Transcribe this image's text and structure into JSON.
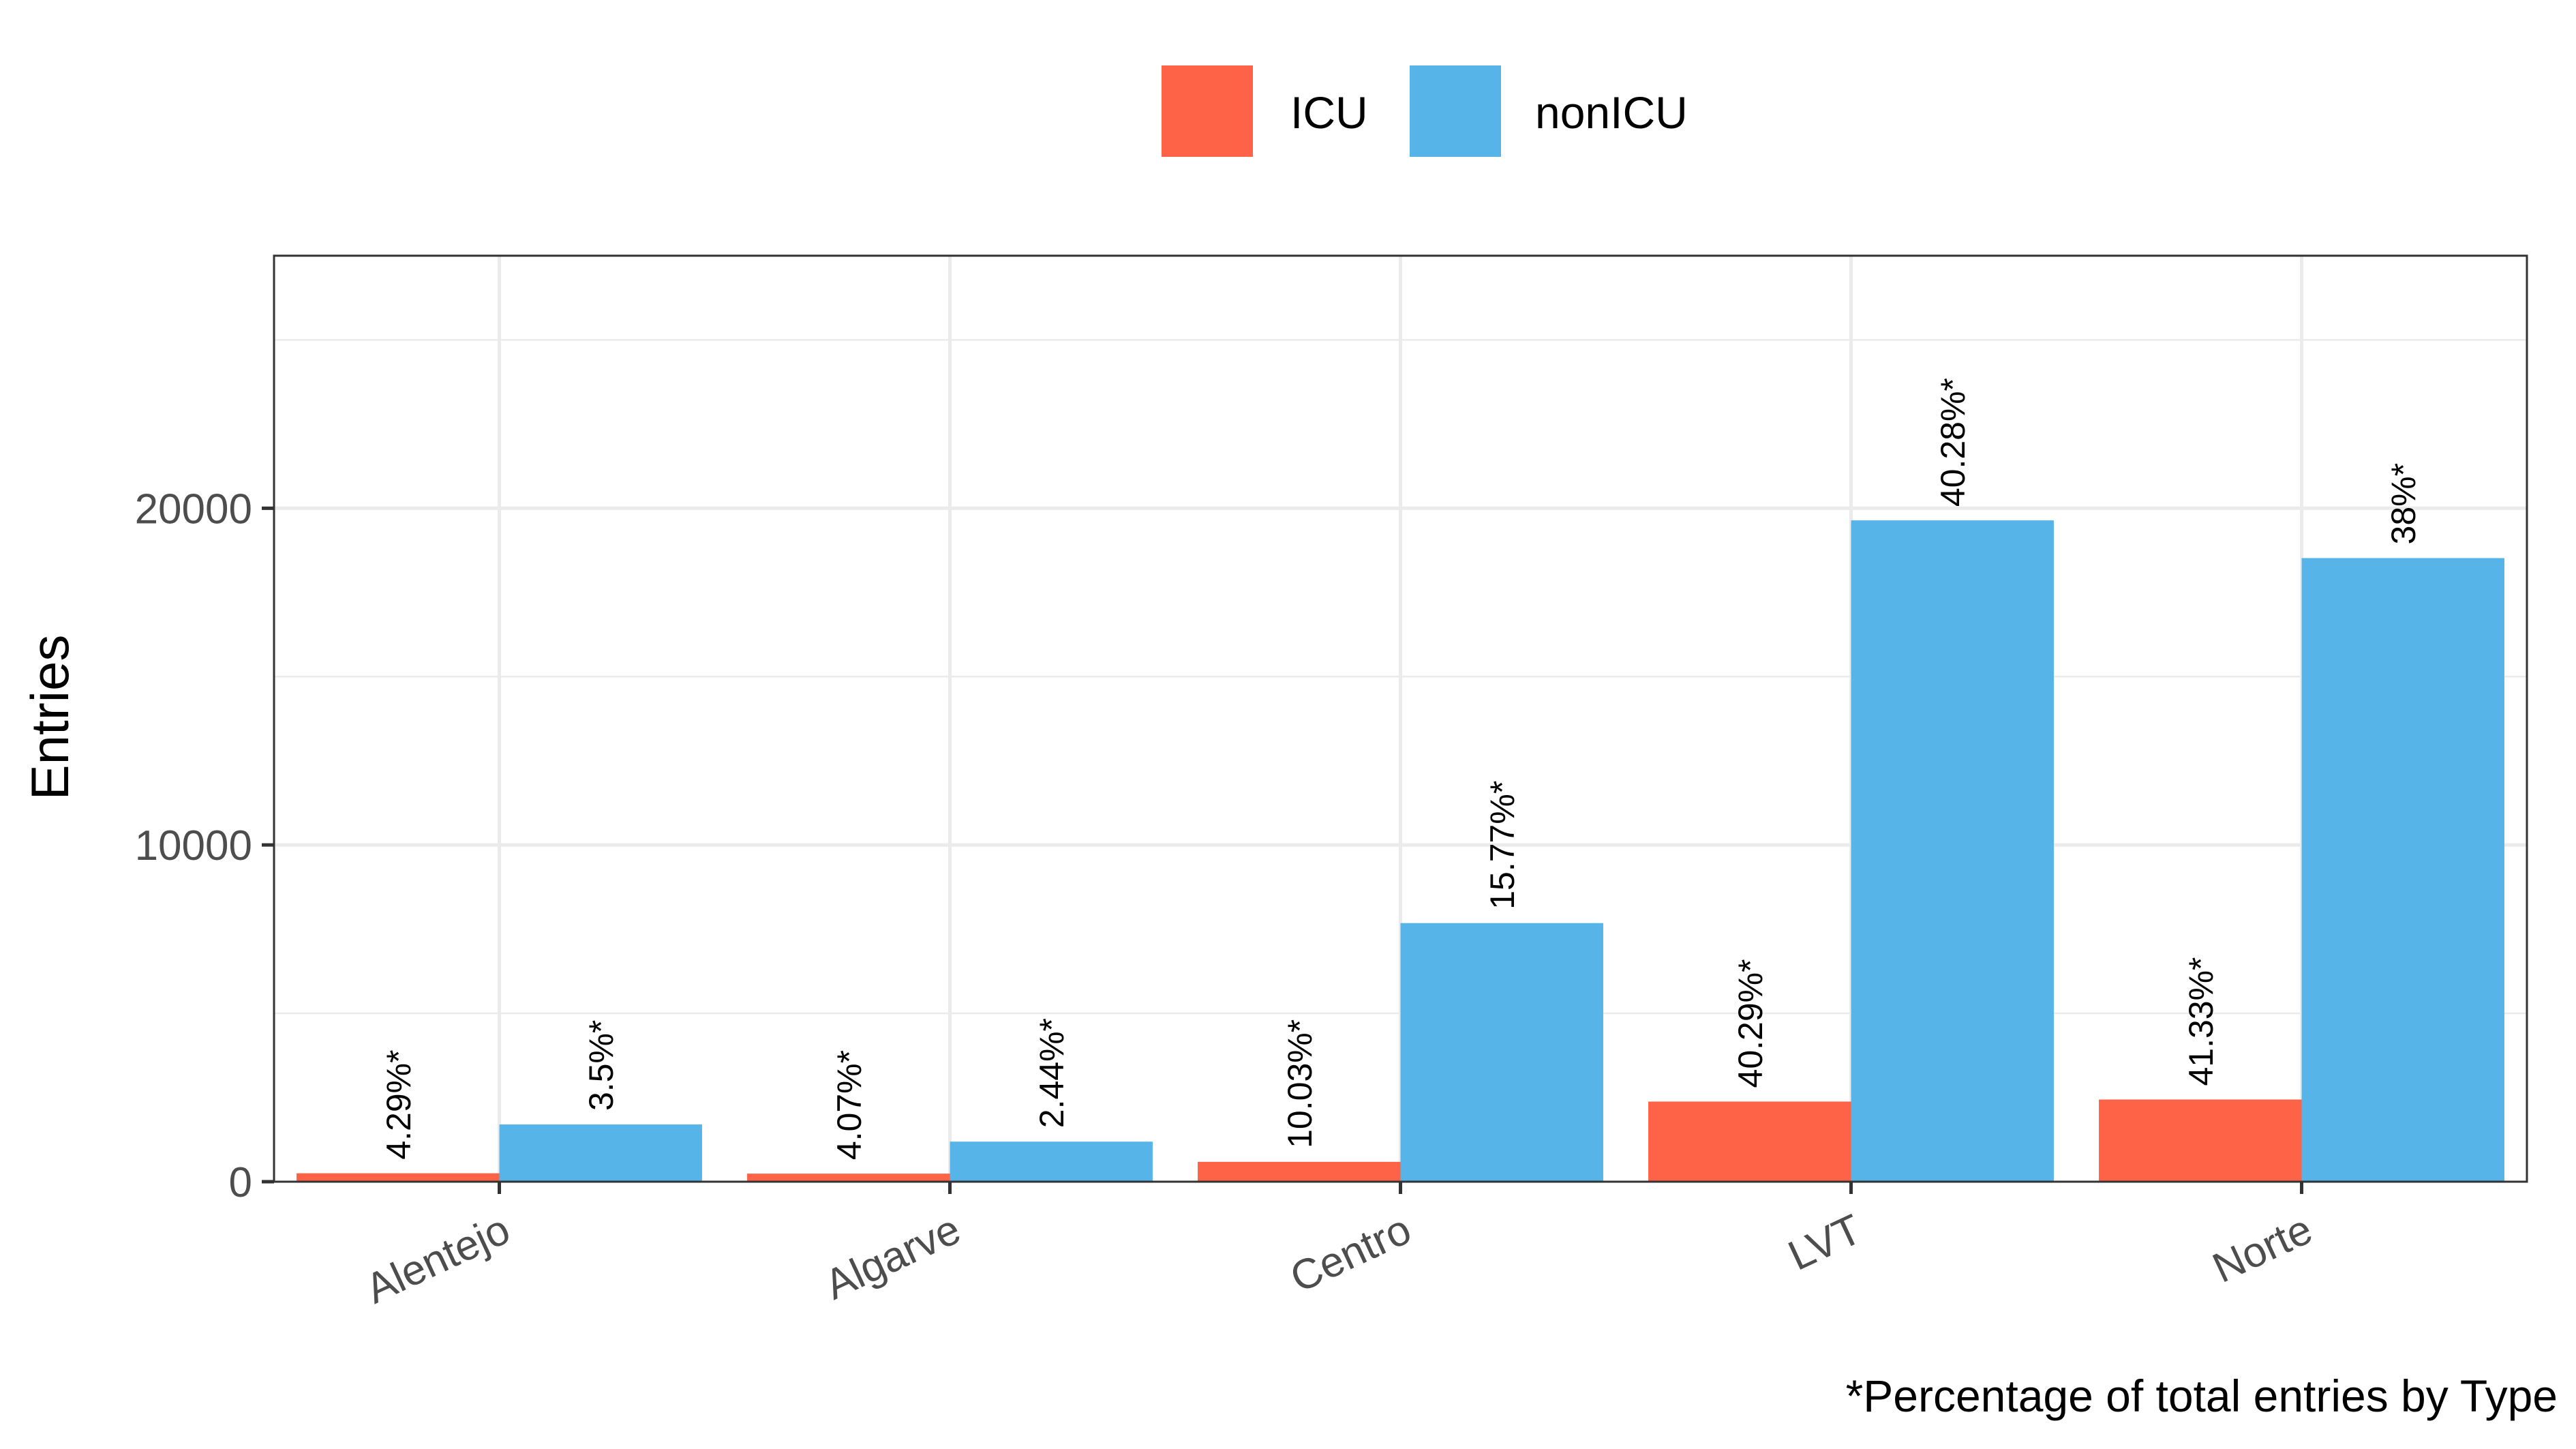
{
  "chart_data": {
    "type": "bar",
    "categories": [
      "Alentejo",
      "Algarve",
      "Centro",
      "LVT",
      "Norte"
    ],
    "series": [
      {
        "name": "ICU",
        "color": "#FF6347",
        "values": [
          250,
          240,
          590,
          2380,
          2440
        ],
        "labels": [
          "4.29%*",
          "4.07%*",
          "10.03%*",
          "40.29%*",
          "41.33%*"
        ]
      },
      {
        "name": "nonICU",
        "color": "#56B4E9",
        "values": [
          1700,
          1190,
          7680,
          19640,
          18520
        ],
        "labels": [
          "3.5%*",
          "2.44%*",
          "15.77%*",
          "40.28%*",
          "38%*"
        ]
      }
    ],
    "xlabel": "",
    "ylabel": "Entries",
    "ylim": [
      0,
      27500
    ],
    "yticks": [
      0,
      10000,
      20000
    ],
    "ytick_labels": [
      "0",
      "10000",
      "20000"
    ],
    "grid": true,
    "legend_position": "top",
    "caption": "*Percentage of total entries by Type"
  }
}
